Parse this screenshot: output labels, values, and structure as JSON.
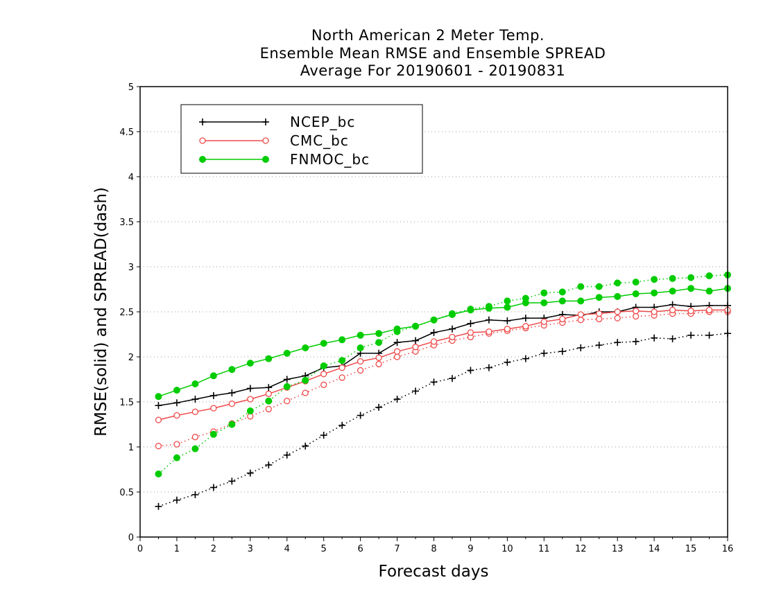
{
  "chart_data": {
    "type": "line",
    "title": [
      "North American 2 Meter Temp.",
      "Ensemble Mean RMSE and Ensemble SPREAD",
      "Average For 20190601 - 20190831"
    ],
    "xlabel": "Forecast days",
    "ylabel": "RMSE(solid) and SPREAD(dash)",
    "xlim": [
      0,
      16
    ],
    "ylim": [
      0,
      5
    ],
    "xticks": [
      "0",
      "1",
      "2",
      "3",
      "4",
      "5",
      "6",
      "7",
      "8",
      "9",
      "10",
      "11",
      "12",
      "13",
      "14",
      "15",
      "16"
    ],
    "yticks": [
      "0",
      "0.5",
      "1",
      "1.5",
      "2",
      "2.5",
      "3",
      "3.5",
      "4",
      "4.5",
      "5"
    ],
    "grid": "horizontal dotted",
    "legend_position": "top-left",
    "x": [
      0.5,
      1,
      1.5,
      2,
      2.5,
      3,
      3.5,
      4,
      4.5,
      5,
      5.5,
      6,
      6.5,
      7,
      7.5,
      8,
      8.5,
      9,
      9.5,
      10,
      10.5,
      11,
      11.5,
      12,
      12.5,
      13,
      13.5,
      14,
      14.5,
      15,
      15.5,
      16
    ],
    "series": [
      {
        "name": "NCEP_bc",
        "color": "#000000",
        "marker": "plus",
        "rmse": [
          1.46,
          1.49,
          1.53,
          1.57,
          1.6,
          1.65,
          1.66,
          1.75,
          1.79,
          1.88,
          1.9,
          2.04,
          2.04,
          2.16,
          2.18,
          2.27,
          2.31,
          2.37,
          2.41,
          2.4,
          2.43,
          2.43,
          2.47,
          2.46,
          2.5,
          2.5,
          2.55,
          2.55,
          2.58,
          2.56,
          2.57,
          2.57
        ],
        "spread": [
          0.34,
          0.41,
          0.47,
          0.55,
          0.62,
          0.71,
          0.8,
          0.91,
          1.01,
          1.13,
          1.24,
          1.35,
          1.44,
          1.53,
          1.62,
          1.72,
          1.76,
          1.85,
          1.88,
          1.94,
          1.98,
          2.04,
          2.06,
          2.1,
          2.13,
          2.16,
          2.17,
          2.21,
          2.2,
          2.24,
          2.24,
          2.26
        ]
      },
      {
        "name": "CMC_bc",
        "color": "#ef4a4a",
        "marker": "open-circle",
        "rmse": [
          1.3,
          1.35,
          1.39,
          1.43,
          1.48,
          1.53,
          1.59,
          1.66,
          1.73,
          1.81,
          1.88,
          1.95,
          1.99,
          2.06,
          2.11,
          2.17,
          2.22,
          2.27,
          2.28,
          2.31,
          2.34,
          2.39,
          2.42,
          2.47,
          2.48,
          2.5,
          2.51,
          2.5,
          2.52,
          2.51,
          2.52,
          2.52
        ],
        "spread": [
          1.01,
          1.03,
          1.11,
          1.17,
          1.26,
          1.34,
          1.42,
          1.51,
          1.6,
          1.69,
          1.77,
          1.85,
          1.92,
          2.0,
          2.06,
          2.13,
          2.18,
          2.22,
          2.26,
          2.29,
          2.32,
          2.35,
          2.38,
          2.41,
          2.42,
          2.43,
          2.45,
          2.46,
          2.48,
          2.48,
          2.5,
          2.5
        ]
      },
      {
        "name": "FNMOC_bc",
        "color": "#00cc00",
        "marker": "filled-circle",
        "rmse": [
          1.56,
          1.63,
          1.7,
          1.79,
          1.86,
          1.93,
          1.98,
          2.04,
          2.1,
          2.15,
          2.19,
          2.24,
          2.26,
          2.31,
          2.34,
          2.41,
          2.47,
          2.52,
          2.54,
          2.55,
          2.6,
          2.6,
          2.62,
          2.62,
          2.66,
          2.67,
          2.7,
          2.71,
          2.73,
          2.76,
          2.73,
          2.76
        ],
        "spread": [
          0.7,
          0.88,
          0.98,
          1.14,
          1.25,
          1.4,
          1.51,
          1.67,
          1.74,
          1.9,
          1.96,
          2.1,
          2.16,
          2.28,
          2.34,
          2.41,
          2.48,
          2.53,
          2.56,
          2.62,
          2.65,
          2.71,
          2.72,
          2.78,
          2.78,
          2.82,
          2.83,
          2.86,
          2.87,
          2.88,
          2.9,
          2.91
        ]
      }
    ]
  }
}
